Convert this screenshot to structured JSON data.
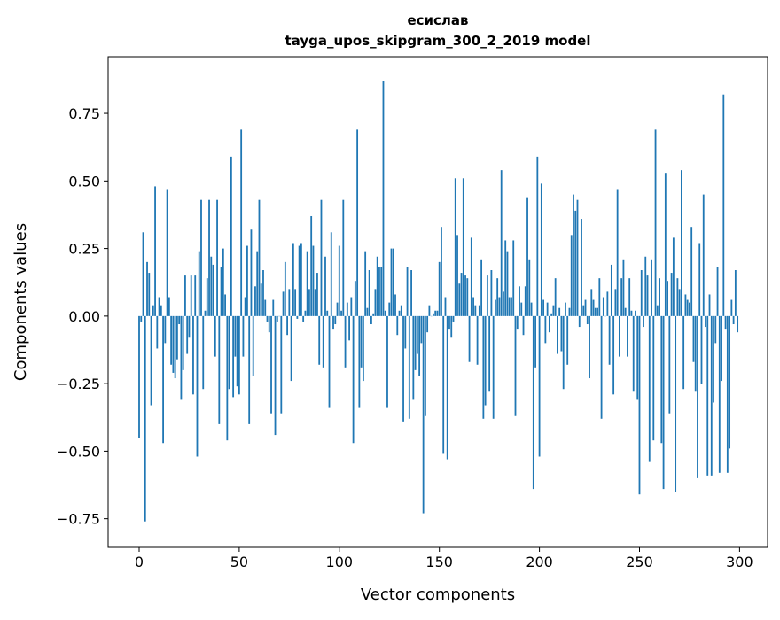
{
  "chart_data": {
    "type": "bar",
    "title_line1": "есислав",
    "title_line2": "tayga_upos_skipgram_300_2_2019 model",
    "xlabel": "Vector components",
    "ylabel": "Components values",
    "xlim": [
      -15.5,
      314
    ],
    "ylim": [
      -0.856,
      0.96
    ],
    "xticks": [
      0,
      50,
      100,
      150,
      200,
      250,
      300
    ],
    "xtick_labels": [
      "0",
      "50",
      "100",
      "150",
      "200",
      "250",
      "300"
    ],
    "yticks": [
      -0.75,
      -0.5,
      -0.25,
      0,
      0.25,
      0.5,
      0.75
    ],
    "ytick_labels": [
      "−0.75",
      "−0.50",
      "−0.25",
      "0.00",
      "0.25",
      "0.50",
      "0.75"
    ],
    "grid": false,
    "color": "#1f77b4",
    "values": [
      -0.45,
      -0.02,
      0.31,
      -0.76,
      0.2,
      0.16,
      -0.33,
      0.04,
      0.48,
      -0.12,
      0.07,
      0.04,
      -0.47,
      -0.1,
      0.47,
      0.07,
      -0.18,
      -0.21,
      -0.23,
      -0.16,
      -0.03,
      -0.31,
      -0.2,
      0.15,
      -0.14,
      -0.08,
      0.15,
      -0.29,
      0.15,
      -0.52,
      0.24,
      0.43,
      -0.27,
      0.02,
      0.14,
      0.43,
      0.22,
      0.19,
      -0.15,
      0.43,
      -0.4,
      0.18,
      0.25,
      0.08,
      -0.46,
      -0.27,
      0.59,
      -0.3,
      -0.15,
      -0.26,
      -0.29,
      0.69,
      -0.15,
      0.07,
      0.26,
      -0.4,
      0.32,
      -0.22,
      0.11,
      0.24,
      0.43,
      0.12,
      0.17,
      0.06,
      -0.02,
      -0.06,
      -0.36,
      0.06,
      -0.44,
      -0.02,
      0.0,
      -0.36,
      0.09,
      0.2,
      -0.07,
      0.1,
      -0.24,
      0.27,
      0.1,
      -0.01,
      0.26,
      0.27,
      -0.02,
      0.02,
      0.24,
      0.1,
      0.37,
      0.26,
      0.1,
      0.16,
      -0.18,
      0.43,
      -0.19,
      0.22,
      0.02,
      -0.34,
      0.31,
      -0.05,
      -0.03,
      0.05,
      0.26,
      0.02,
      0.43,
      -0.19,
      0.05,
      -0.09,
      0.07,
      -0.47,
      0.13,
      0.69,
      -0.34,
      -0.19,
      -0.24,
      0.24,
      0.03,
      0.17,
      -0.03,
      0.01,
      0.1,
      0.22,
      0.18,
      0.18,
      0.87,
      0.02,
      -0.34,
      0.05,
      0.25,
      0.25,
      0.08,
      -0.07,
      0.02,
      0.04,
      -0.39,
      -0.12,
      0.18,
      -0.38,
      0.17,
      -0.31,
      -0.2,
      -0.14,
      -0.22,
      -0.1,
      -0.73,
      -0.37,
      -0.06,
      0.04,
      0.0,
      0.01,
      0.02,
      0.02,
      0.2,
      0.33,
      -0.51,
      0.07,
      -0.53,
      -0.05,
      -0.08,
      -0.02,
      0.51,
      0.3,
      0.12,
      0.16,
      0.51,
      0.15,
      0.14,
      -0.17,
      0.29,
      0.07,
      0.04,
      -0.18,
      0.04,
      0.21,
      -0.38,
      -0.33,
      0.15,
      -0.28,
      0.17,
      -0.38,
      0.06,
      0.14,
      0.07,
      0.54,
      0.09,
      0.28,
      0.24,
      0.07,
      0.07,
      0.28,
      -0.37,
      -0.05,
      0.11,
      0.05,
      -0.07,
      0.11,
      0.44,
      0.21,
      0.05,
      -0.64,
      -0.19,
      0.59,
      -0.52,
      0.49,
      0.06,
      -0.1,
      0.05,
      -0.06,
      0.01,
      0.04,
      0.14,
      -0.14,
      0.03,
      -0.13,
      -0.27,
      0.05,
      -0.18,
      0.03,
      0.3,
      0.45,
      0.39,
      0.43,
      -0.04,
      0.36,
      0.04,
      0.06,
      -0.03,
      -0.23,
      0.1,
      0.06,
      0.03,
      0.03,
      0.14,
      -0.38,
      0.07,
      0.0,
      0.09,
      -0.18,
      0.19,
      -0.29,
      0.1,
      0.47,
      -0.15,
      0.14,
      0.21,
      0.03,
      -0.15,
      0.14,
      0.02,
      -0.28,
      0.02,
      -0.31,
      -0.66,
      0.17,
      -0.04,
      0.22,
      0.15,
      -0.54,
      0.21,
      -0.46,
      0.69,
      0.04,
      0.14,
      -0.47,
      -0.64,
      0.53,
      0.13,
      -0.36,
      0.16,
      0.29,
      -0.65,
      0.14,
      0.1,
      0.54,
      -0.27,
      0.08,
      0.06,
      0.05,
      0.33,
      -0.17,
      -0.28,
      -0.6,
      0.27,
      -0.25,
      0.45,
      -0.04,
      -0.59,
      0.08,
      -0.59,
      -0.32,
      -0.1,
      0.18,
      -0.58,
      -0.24,
      0.82,
      -0.05,
      -0.58,
      -0.49,
      0.06,
      -0.03,
      0.17,
      -0.06
    ]
  }
}
